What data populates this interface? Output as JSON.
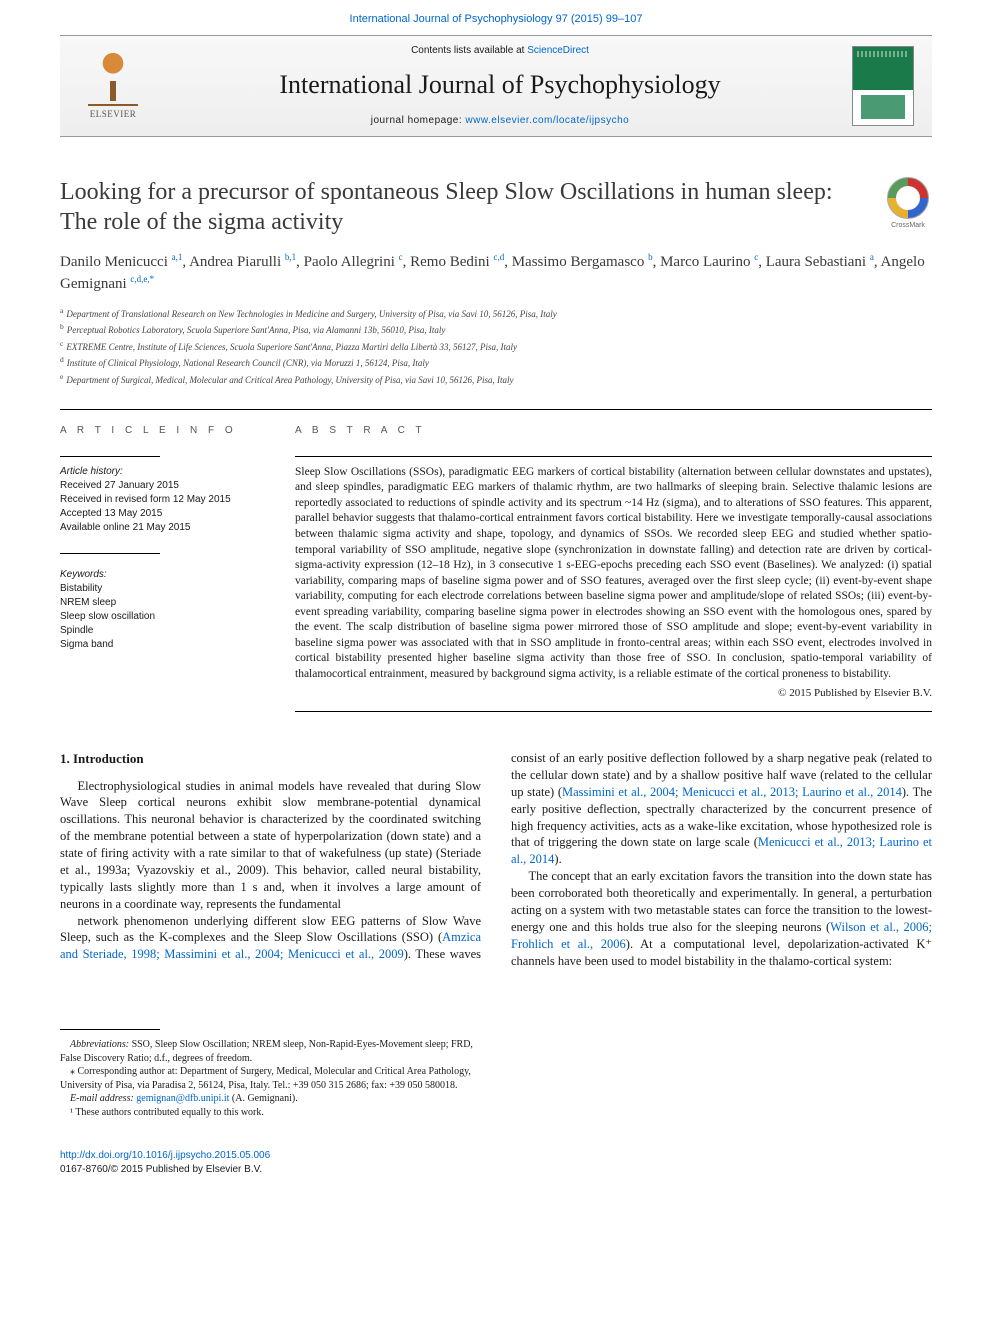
{
  "top_citation": "International Journal of Psychophysiology 97 (2015) 99–107",
  "header": {
    "contents_prefix": "Contents lists available at ",
    "contents_link": "ScienceDirect",
    "journal": "International Journal of Psychophysiology",
    "homepage_prefix": "journal homepage: ",
    "homepage_url": "www.elsevier.com/locate/ijpsycho",
    "publisher": "ELSEVIER"
  },
  "crossmark_label": "CrossMark",
  "title": "Looking for a precursor of spontaneous Sleep Slow Oscillations in human sleep: The role of the sigma activity",
  "authors_html": "Danilo Menicucci <sup>a,1</sup>, Andrea Piarulli <sup>b,1</sup>, Paolo Allegrini <sup>c</sup>, Remo Bedini <sup>c,d</sup>, Massimo Bergamasco <sup>b</sup>, Marco Laurino <sup>c</sup>, Laura Sebastiani <sup>a</sup>, Angelo Gemignani <sup>c,d,e,*</sup>",
  "affiliations": [
    {
      "s": "a",
      "t": "Department of Translational Research on New Technologies in Medicine and Surgery, University of Pisa, via Savi 10, 56126, Pisa, Italy"
    },
    {
      "s": "b",
      "t": "Perceptual Robotics Laboratory, Scuola Superiore Sant'Anna, Pisa, via Alamanni 13b, 56010, Pisa, Italy"
    },
    {
      "s": "c",
      "t": "EXTREME Centre, Institute of Life Sciences, Scuola Superiore Sant'Anna, Piazza Martiri della Libertà 33, 56127, Pisa, Italy"
    },
    {
      "s": "d",
      "t": "Institute of Clinical Physiology, National Research Council (CNR), via Moruzzi 1, 56124, Pisa, Italy"
    },
    {
      "s": "e",
      "t": "Department of Surgical, Medical, Molecular and Critical Area Pathology, University of Pisa, via Savi 10, 56126, Pisa, Italy"
    }
  ],
  "article_info": {
    "heading": "A R T I C L E   I N F O",
    "history_label": "Article history:",
    "history": [
      "Received 27 January 2015",
      "Received in revised form 12 May 2015",
      "Accepted 13 May 2015",
      "Available online 21 May 2015"
    ],
    "keywords_label": "Keywords:",
    "keywords": [
      "Bistability",
      "NREM sleep",
      "Sleep slow oscillation",
      "Spindle",
      "Sigma band"
    ]
  },
  "abstract": {
    "heading": "A B S T R A C T",
    "text": "Sleep Slow Oscillations (SSOs), paradigmatic EEG markers of cortical bistability (alternation between cellular downstates and upstates), and sleep spindles, paradigmatic EEG markers of thalamic rhythm, are two hallmarks of sleeping brain. Selective thalamic lesions are reportedly associated to reductions of spindle activity and its spectrum ~14 Hz (sigma), and to alterations of SSO features. This apparent, parallel behavior suggests that thalamo-cortical entrainment favors cortical bistability. Here we investigate temporally-causal associations between thalamic sigma activity and shape, topology, and dynamics of SSOs. We recorded sleep EEG and studied whether spatio-temporal variability of SSO amplitude, negative slope (synchronization in downstate falling) and detection rate are driven by cortical-sigma-activity expression (12–18 Hz), in 3 consecutive 1 s-EEG-epochs preceding each SSO event (Baselines). We analyzed: (i) spatial variability, comparing maps of baseline sigma power and of SSO features, averaged over the first sleep cycle; (ii) event-by-event shape variability, computing for each electrode correlations between baseline sigma power and amplitude/slope of related SSOs; (iii) event-by-event spreading variability, comparing baseline sigma power in electrodes showing an SSO event with the homologous ones, spared by the event. The scalp distribution of baseline sigma power mirrored those of SSO amplitude and slope; event-by-event variability in baseline sigma power was associated with that in SSO amplitude in fronto-central areas; within each SSO event, electrodes involved in cortical bistability presented higher baseline sigma activity than those free of SSO. In conclusion, spatio-temporal variability of thalamocortical entrainment, measured by background sigma activity, is a reliable estimate of the cortical proneness to bistability.",
    "copyright": "© 2015 Published by Elsevier B.V."
  },
  "intro": {
    "heading": "1. Introduction",
    "p1": "Electrophysiological studies in animal models have revealed that during Slow Wave Sleep cortical neurons exhibit slow membrane-potential dynamical oscillations. This neuronal behavior is characterized by the coordinated switching of the membrane potential between a state of hyperpolarization (down state) and a state of firing activity with a rate similar to that of wakefulness (up state) (Steriade et al., 1993a; Vyazovskiy et al., 2009). This behavior, called neural bistability, typically lasts slightly more than 1 s and, when it involves a large amount of neurons in a coordinate way, represents the fundamental",
    "p2a": "network phenomenon underlying different slow EEG patterns of Slow Wave Sleep, such as the K-complexes and the Sleep Slow Oscillations (SSO) (",
    "p2link1": "Amzica and Steriade, 1998; Massimini et al., 2004; Menicucci et al., 2009",
    "p2b": "). These waves consist of an early positive deflection followed by a sharp negative peak (related to the cellular down state) and by a shallow positive half wave (related to the cellular up state) (",
    "p2link2": "Massimini et al., 2004; Menicucci et al., 2013; Laurino et al., 2014",
    "p2c": "). The early positive deflection, spectrally characterized by the concurrent presence of high frequency activities, acts as a wake-like excitation, whose hypothesized role is that of triggering the down state on large scale (",
    "p2link3": "Menicucci et al., 2013; Laurino et al., 2014",
    "p2d": ").",
    "p3a": "The concept that an early excitation favors the transition into the down state has been corroborated both theoretically and experimentally. In general, a perturbation acting on a system with two metastable states can force the transition to the lowest-energy one and this holds true also for the sleeping neurons (",
    "p3link1": "Wilson et al., 2006; Frohlich et al., 2006",
    "p3b": "). At a computational level, depolarization-activated K⁺ channels have been used to model bistability in the thalamo-cortical system:"
  },
  "footnotes": {
    "abbrev_label": "Abbreviations:",
    "abbrev": " SSO, Sleep Slow Oscillation; NREM sleep, Non-Rapid-Eyes-Movement sleep; FRD, False Discovery Ratio; d.f., degrees of freedom.",
    "corr": "⁎ Corresponding author at: Department of Surgery, Medical, Molecular and Critical Area Pathology, University of Pisa, via Paradisa 2, 56124, Pisa, Italy. Tel.: +39 050 315 2686; fax: +39 050 580018.",
    "email_label": "E-mail address: ",
    "email": "gemignan@dfb.unipi.it",
    "email_suffix": " (A. Gemignani).",
    "equal": "¹ These authors contributed equally to this work."
  },
  "bottom": {
    "doi": "http://dx.doi.org/10.1016/j.ijpsycho.2015.05.006",
    "issn_line": "0167-8760/© 2015 Published by Elsevier B.V."
  },
  "colors": {
    "link": "#0066cc",
    "text": "#1a1a1a",
    "rule": "#000000",
    "background": "#ffffff"
  }
}
